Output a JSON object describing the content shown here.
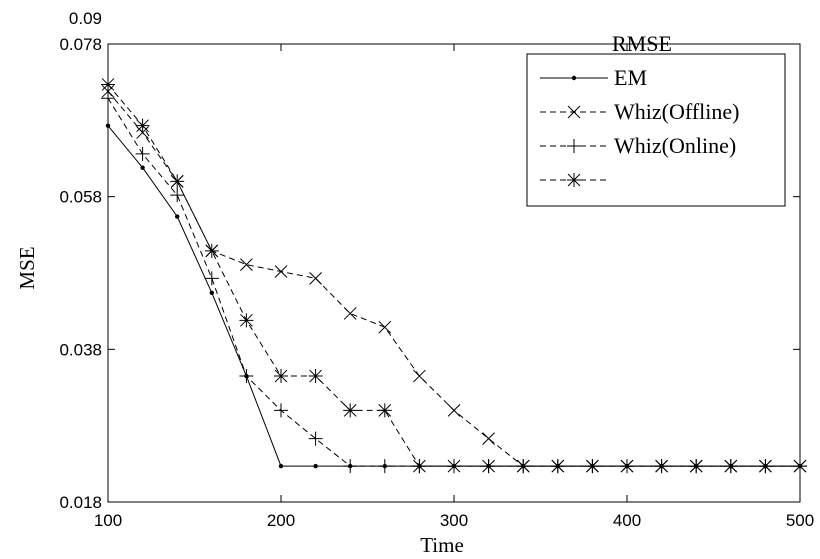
{
  "chart_data": {
    "type": "line",
    "title": "",
    "xlabel": "Time",
    "ylabel": "MSE",
    "xlim": [
      100,
      500
    ],
    "ylim": [
      0.018,
      0.078
    ],
    "x_ticks": [
      100,
      200,
      300,
      400,
      500
    ],
    "y_ticks": [
      {
        "value": 0.018,
        "label": "0.018"
      },
      {
        "value": 0.038,
        "label": "0.038"
      },
      {
        "value": 0.058,
        "label": "0.058"
      },
      {
        "value": 0.078,
        "label": "0.078"
      },
      {
        "value": 0.09,
        "label": "0.09"
      }
    ],
    "grid": false,
    "legend": {
      "title": "RMSE",
      "placement": "top-right",
      "entries": [
        "EM",
        "Whiz(Offline)",
        "Whiz(Online)",
        ""
      ]
    },
    "series": [
      {
        "name": "EM",
        "style": "solid",
        "marker": "dot",
        "x": [
          100,
          120,
          140,
          160,
          180,
          200,
          220,
          240,
          260,
          280,
          300,
          320,
          340,
          360,
          380,
          400,
          420,
          440,
          460,
          480,
          500
        ],
        "values": [
          0.0673,
          0.0618,
          0.0554,
          0.0454,
          0.0345,
          0.0227,
          0.0227,
          0.0227,
          0.0227,
          0.0227,
          0.0227,
          0.0227,
          0.0227,
          0.0227,
          0.0227,
          0.0227,
          0.0227,
          0.0227,
          0.0227,
          0.0227,
          0.0227
        ]
      },
      {
        "name": "Whiz(Offline)",
        "style": "dashed",
        "marker": "x",
        "x": [
          100,
          120,
          140,
          160,
          180,
          200,
          220,
          240,
          260,
          280,
          300,
          320,
          340,
          360,
          380,
          400,
          420,
          440,
          460,
          480,
          500
        ],
        "values": [
          0.0718,
          0.0664,
          0.06,
          0.0509,
          0.0491,
          0.0482,
          0.0473,
          0.0427,
          0.0409,
          0.0345,
          0.03,
          0.0263,
          0.0227,
          0.0227,
          0.0227,
          0.0227,
          0.0227,
          0.0227,
          0.0227,
          0.0227,
          0.0227
        ]
      },
      {
        "name": "Whiz(Online)",
        "style": "dashed",
        "marker": "plus",
        "x": [
          100,
          120,
          140,
          160,
          180,
          200,
          220,
          240,
          260,
          280,
          300,
          320,
          340,
          360,
          380,
          400,
          420,
          440,
          460,
          480,
          500
        ],
        "values": [
          0.0709,
          0.0636,
          0.0582,
          0.0473,
          0.0345,
          0.03,
          0.0263,
          0.0227,
          0.0227,
          0.0227,
          0.0227,
          0.0227,
          0.0227,
          0.0227,
          0.0227,
          0.0227,
          0.0227,
          0.0227,
          0.0227,
          0.0227,
          0.0227
        ]
      },
      {
        "name": "",
        "style": "dashed",
        "marker": "asterisk",
        "x": [
          100,
          120,
          140,
          160,
          180,
          200,
          220,
          240,
          260,
          280,
          300,
          320,
          340,
          360,
          380,
          400,
          420,
          440,
          460,
          480,
          500
        ],
        "values": [
          0.0727,
          0.0673,
          0.06,
          0.0509,
          0.0418,
          0.0345,
          0.0345,
          0.03,
          0.03,
          0.0227,
          0.0227,
          0.0227,
          0.0227,
          0.0227,
          0.0227,
          0.0227,
          0.0227,
          0.0227,
          0.0227,
          0.0227,
          0.0227
        ]
      }
    ]
  }
}
